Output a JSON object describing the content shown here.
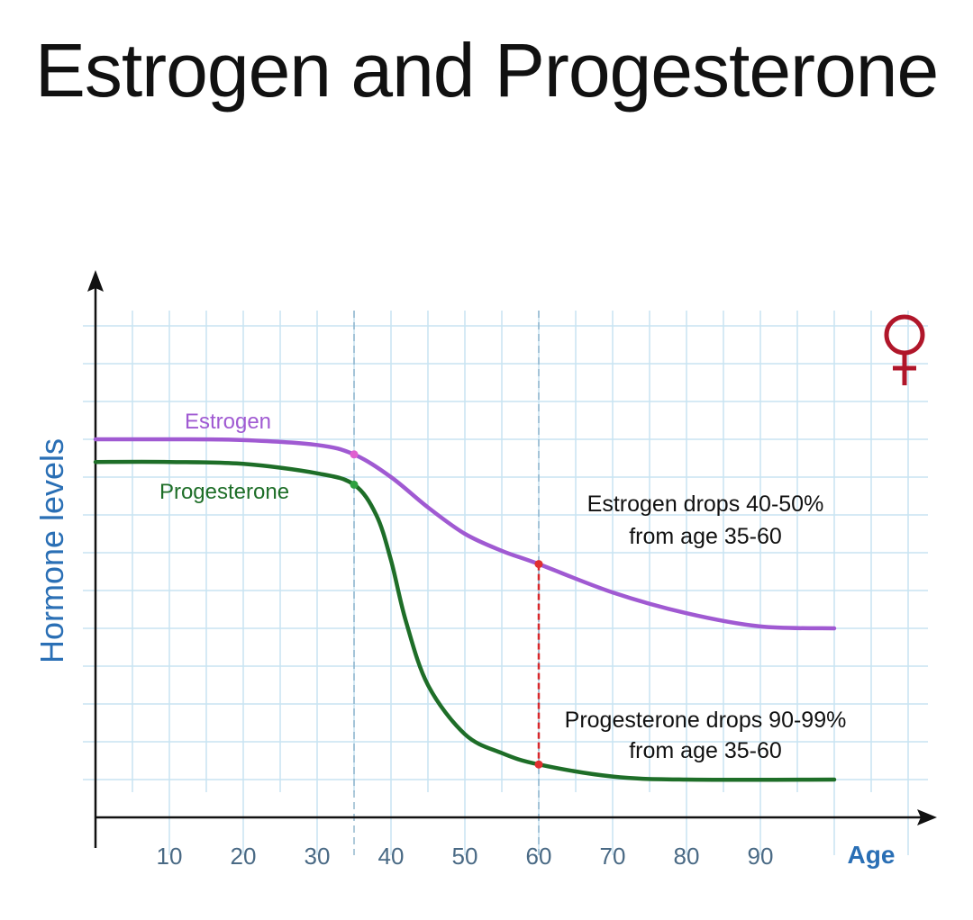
{
  "chart_data": {
    "type": "line",
    "title": "Estrogen and Progesterone",
    "xlabel": "Age",
    "ylabel": "Hormone levels",
    "xlim": [
      0,
      110
    ],
    "ylim": [
      0,
      13
    ],
    "x_ticks": [
      10,
      20,
      30,
      40,
      50,
      60,
      70,
      80,
      90
    ],
    "grid": true,
    "series": [
      {
        "name": "Estrogen",
        "color": "#a05ad2",
        "x": [
          0,
          10,
          20,
          30,
          35,
          40,
          45,
          50,
          55,
          60,
          70,
          80,
          90,
          100
        ],
        "values": [
          10,
          10,
          9.98,
          9.85,
          9.6,
          9.0,
          8.2,
          7.5,
          7.05,
          6.7,
          5.95,
          5.4,
          5.05,
          5.0
        ]
      },
      {
        "name": "Progesterone",
        "color": "#1e6e28",
        "x": [
          0,
          10,
          20,
          30,
          35,
          38,
          40,
          42,
          45,
          50,
          55,
          60,
          70,
          80,
          100
        ],
        "values": [
          9.4,
          9.4,
          9.35,
          9.1,
          8.8,
          8.0,
          6.8,
          5.2,
          3.5,
          2.2,
          1.7,
          1.4,
          1.08,
          1.0,
          1.0
        ]
      }
    ],
    "markers": [
      35,
      60
    ],
    "annotations": [
      "Estrogen drops 40-50%",
      "from age 35-60",
      "Progesterone drops 90-99%",
      "from age 35-60"
    ],
    "symbol": "female-symbol",
    "colors": {
      "axis_label": "#2a6fb5",
      "tick": "#4a6a85",
      "grid": "#c8e4f2",
      "female": "#b0162a",
      "drop_line": "#d8282c"
    }
  }
}
